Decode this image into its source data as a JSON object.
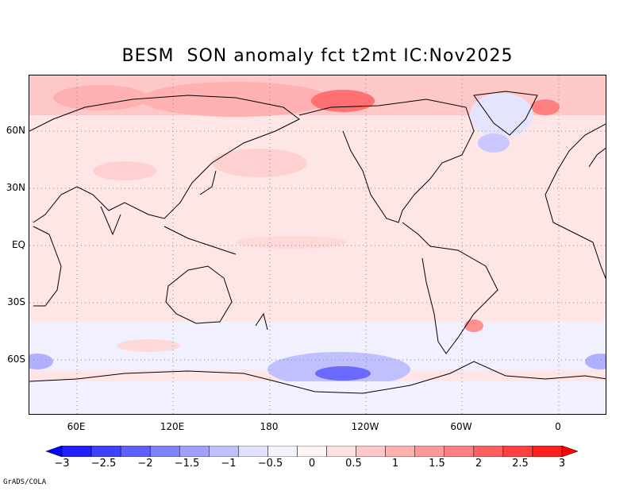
{
  "title": "BESM  SON anomaly fct t2mt IC:Nov2025",
  "credit": "GrADS/COLA",
  "lat_labels": [
    "60N",
    "30N",
    "EQ",
    "30S",
    "60S"
  ],
  "lon_labels": [
    "60E",
    "120E",
    "180",
    "120W",
    "60W",
    "0"
  ],
  "colorbar": {
    "labels": [
      "-3",
      "-2.5",
      "-2",
      "-1.5",
      "-1",
      "-0.5",
      "0",
      "0.5",
      "1",
      "1.5",
      "2",
      "2.5",
      "3"
    ],
    "colors": [
      "#0000ff",
      "#2020ff",
      "#4040ff",
      "#6060ff",
      "#8080ff",
      "#a0a0ff",
      "#c0c0ff",
      "#e0e0ff",
      "#f4f4ff",
      "#fff4f4",
      "#ffe0e0",
      "#ffc8c8",
      "#ffb0b0",
      "#ff9898",
      "#ff8080",
      "#ff6060",
      "#ff4040",
      "#ff2020",
      "#ff0000"
    ]
  },
  "colors": {
    "ocean_base": "#ffe6e6",
    "weak_warm": "#ffd0d0",
    "warm": "#ffb0b0",
    "strong_warm": "#ff7070",
    "cool": "#dcdcff",
    "strong_cool": "#6a6aff",
    "coast": "#000000",
    "grid": "#888888"
  }
}
